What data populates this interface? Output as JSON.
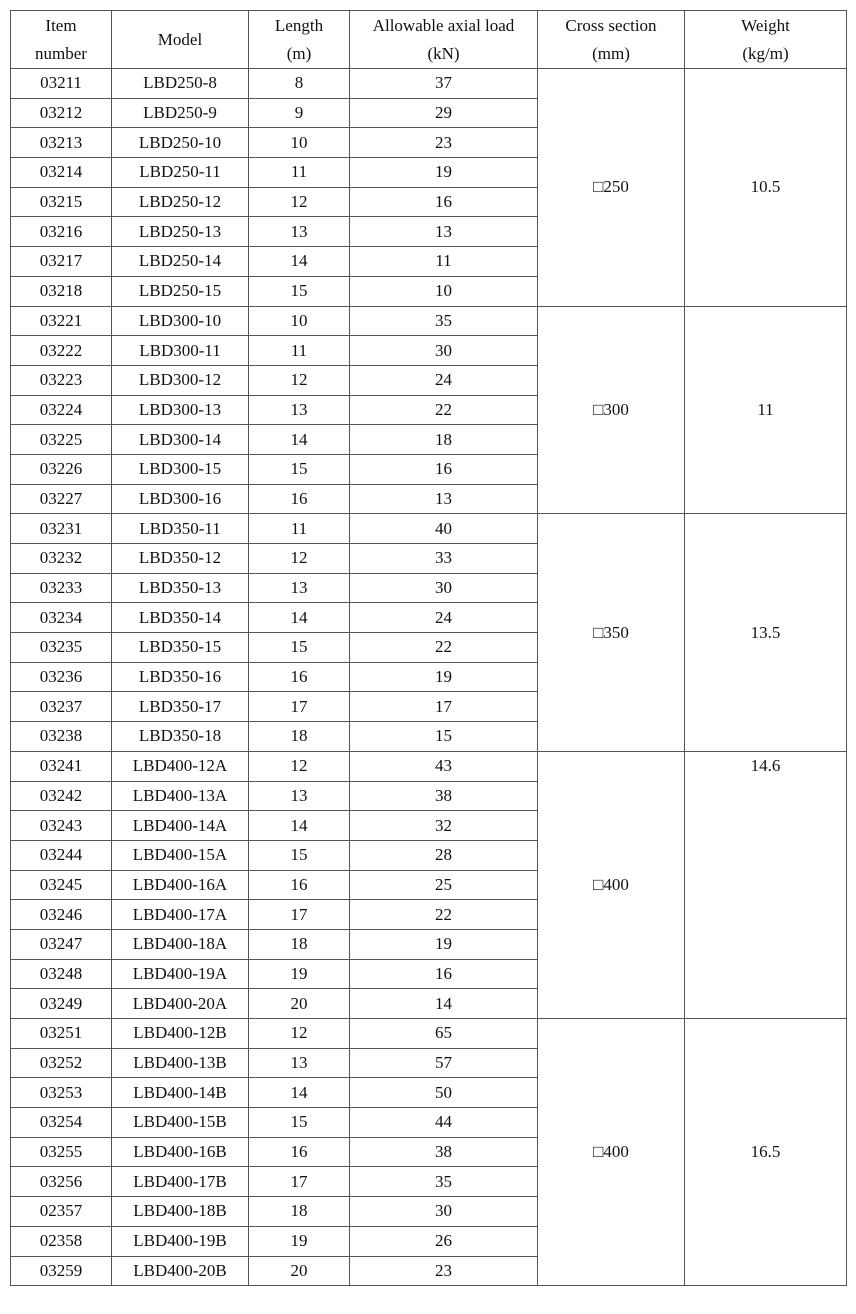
{
  "headers": {
    "item_number": [
      "Item",
      "number"
    ],
    "model": "Model",
    "length": [
      "Length",
      "(m)"
    ],
    "load": [
      "Allowable axial load",
      "(kN)"
    ],
    "cross_section": [
      "Cross section",
      "(mm)"
    ],
    "weight": [
      "Weight",
      "(kg/m)"
    ]
  },
  "groups": [
    {
      "cross_section": "□250",
      "weight": "10.5",
      "weight_align": "middle",
      "rows": [
        [
          "03211",
          "LBD250-8",
          "8",
          "37"
        ],
        [
          "03212",
          "LBD250-9",
          "9",
          "29"
        ],
        [
          "03213",
          "LBD250-10",
          "10",
          "23"
        ],
        [
          "03214",
          "LBD250-11",
          "11",
          "19"
        ],
        [
          "03215",
          "LBD250-12",
          "12",
          "16"
        ],
        [
          "03216",
          "LBD250-13",
          "13",
          "13"
        ],
        [
          "03217",
          "LBD250-14",
          "14",
          "11"
        ],
        [
          "03218",
          "LBD250-15",
          "15",
          "10"
        ]
      ]
    },
    {
      "cross_section": "□300",
      "weight": "11",
      "weight_align": "middle",
      "rows": [
        [
          "03221",
          "LBD300-10",
          "10",
          "35"
        ],
        [
          "03222",
          "LBD300-11",
          "11",
          "30"
        ],
        [
          "03223",
          "LBD300-12",
          "12",
          "24"
        ],
        [
          "03224",
          "LBD300-13",
          "13",
          "22"
        ],
        [
          "03225",
          "LBD300-14",
          "14",
          "18"
        ],
        [
          "03226",
          "LBD300-15",
          "15",
          "16"
        ],
        [
          "03227",
          "LBD300-16",
          "16",
          "13"
        ]
      ]
    },
    {
      "cross_section": "□350",
      "weight": "13.5",
      "weight_align": "middle",
      "rows": [
        [
          "03231",
          "LBD350-11",
          "11",
          "40"
        ],
        [
          "03232",
          "LBD350-12",
          "12",
          "33"
        ],
        [
          "03233",
          "LBD350-13",
          "13",
          "30"
        ],
        [
          "03234",
          "LBD350-14",
          "14",
          "24"
        ],
        [
          "03235",
          "LBD350-15",
          "15",
          "22"
        ],
        [
          "03236",
          "LBD350-16",
          "16",
          "19"
        ],
        [
          "03237",
          "LBD350-17",
          "17",
          "17"
        ],
        [
          "03238",
          "LBD350-18",
          "18",
          "15"
        ]
      ]
    },
    {
      "cross_section": "□400",
      "weight": "14.6",
      "weight_align": "top",
      "rows": [
        [
          "03241",
          "LBD400-12A",
          "12",
          "43"
        ],
        [
          "03242",
          "LBD400-13A",
          "13",
          "38"
        ],
        [
          "03243",
          "LBD400-14A",
          "14",
          "32"
        ],
        [
          "03244",
          "LBD400-15A",
          "15",
          "28"
        ],
        [
          "03245",
          "LBD400-16A",
          "16",
          "25"
        ],
        [
          "03246",
          "LBD400-17A",
          "17",
          "22"
        ],
        [
          "03247",
          "LBD400-18A",
          "18",
          "19"
        ],
        [
          "03248",
          "LBD400-19A",
          "19",
          "16"
        ],
        [
          "03249",
          "LBD400-20A",
          "20",
          "14"
        ]
      ]
    },
    {
      "cross_section": "□400",
      "weight": "16.5",
      "weight_align": "middle",
      "rows": [
        [
          "03251",
          "LBD400-12B",
          "12",
          "65"
        ],
        [
          "03252",
          "LBD400-13B",
          "13",
          "57"
        ],
        [
          "03253",
          "LBD400-14B",
          "14",
          "50"
        ],
        [
          "03254",
          "LBD400-15B",
          "15",
          "44"
        ],
        [
          "03255",
          "LBD400-16B",
          "16",
          "38"
        ],
        [
          "03256",
          "LBD400-17B",
          "17",
          "35"
        ],
        [
          "02357",
          "LBD400-18B",
          "18",
          "30"
        ],
        [
          "02358",
          "LBD400-19B",
          "19",
          "26"
        ],
        [
          "03259",
          "LBD400-20B",
          "20",
          "23"
        ]
      ]
    }
  ]
}
